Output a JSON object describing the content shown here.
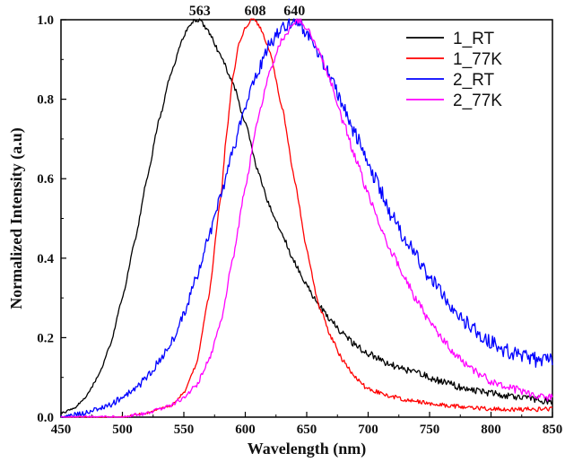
{
  "chart_data": {
    "type": "line",
    "title": "",
    "xlabel": "Wavelength (nm)",
    "ylabel": "Normalized Intensity (a.u)",
    "xlim": [
      450,
      850
    ],
    "ylim": [
      0.0,
      1.0
    ],
    "x_ticks": [
      "450",
      "500",
      "550",
      "600",
      "650",
      "700",
      "750",
      "800",
      "850"
    ],
    "y_ticks": [
      "0.0",
      "0.2",
      "0.4",
      "0.6",
      "0.8",
      "1.0"
    ],
    "grid": false,
    "legend_position": "top-right",
    "annotations": [
      {
        "text": "563",
        "x": 563,
        "y": 1.0
      },
      {
        "text": "608",
        "x": 608,
        "y": 1.0
      },
      {
        "text": "640",
        "x": 640,
        "y": 1.0
      }
    ],
    "series": [
      {
        "name": "1_RT",
        "color": "#000000",
        "x": [
          450,
          460,
          470,
          480,
          490,
          500,
          510,
          520,
          530,
          540,
          550,
          555,
          560,
          563,
          570,
          580,
          590,
          600,
          610,
          620,
          630,
          640,
          650,
          660,
          670,
          680,
          690,
          700,
          720,
          740,
          760,
          780,
          800,
          820,
          850
        ],
        "y": [
          0.01,
          0.02,
          0.05,
          0.1,
          0.18,
          0.3,
          0.44,
          0.6,
          0.75,
          0.87,
          0.96,
          0.99,
          1.0,
          1.0,
          0.97,
          0.91,
          0.84,
          0.74,
          0.62,
          0.53,
          0.46,
          0.39,
          0.33,
          0.28,
          0.24,
          0.21,
          0.18,
          0.16,
          0.13,
          0.11,
          0.09,
          0.07,
          0.06,
          0.05,
          0.04
        ]
      },
      {
        "name": "1_77K",
        "color": "#ff0000",
        "x": [
          450,
          480,
          500,
          520,
          540,
          550,
          560,
          570,
          580,
          585,
          590,
          595,
          600,
          605,
          608,
          612,
          620,
          630,
          640,
          650,
          660,
          670,
          680,
          690,
          700,
          720,
          740,
          760,
          800,
          850
        ],
        "y": [
          0.0,
          0.0,
          0.0,
          0.01,
          0.03,
          0.06,
          0.13,
          0.3,
          0.55,
          0.72,
          0.86,
          0.94,
          0.98,
          1.0,
          1.0,
          0.98,
          0.92,
          0.78,
          0.6,
          0.42,
          0.28,
          0.2,
          0.14,
          0.1,
          0.07,
          0.05,
          0.04,
          0.03,
          0.02,
          0.02
        ]
      },
      {
        "name": "2_RT",
        "color": "#0000ff",
        "x": [
          450,
          470,
          480,
          490,
          500,
          510,
          520,
          530,
          540,
          550,
          560,
          570,
          580,
          590,
          600,
          610,
          620,
          630,
          640,
          650,
          660,
          670,
          680,
          690,
          700,
          710,
          720,
          730,
          740,
          750,
          760,
          770,
          780,
          790,
          800,
          810,
          820,
          830,
          840,
          850
        ],
        "y": [
          0.0,
          0.01,
          0.02,
          0.03,
          0.05,
          0.07,
          0.1,
          0.14,
          0.19,
          0.26,
          0.35,
          0.45,
          0.56,
          0.67,
          0.78,
          0.87,
          0.94,
          0.98,
          1.0,
          0.97,
          0.91,
          0.85,
          0.78,
          0.71,
          0.64,
          0.57,
          0.5,
          0.45,
          0.4,
          0.35,
          0.31,
          0.27,
          0.24,
          0.21,
          0.19,
          0.17,
          0.16,
          0.15,
          0.14,
          0.14
        ]
      },
      {
        "name": "2_77K",
        "color": "#ff00ff",
        "x": [
          450,
          500,
          520,
          540,
          550,
          560,
          570,
          580,
          590,
          600,
          610,
          620,
          630,
          640,
          645,
          650,
          660,
          670,
          680,
          690,
          700,
          710,
          720,
          730,
          740,
          750,
          760,
          770,
          780,
          790,
          800,
          810,
          820,
          830,
          840,
          850
        ],
        "y": [
          0.0,
          0.0,
          0.01,
          0.03,
          0.05,
          0.08,
          0.14,
          0.24,
          0.4,
          0.58,
          0.75,
          0.87,
          0.95,
          0.99,
          1.0,
          0.98,
          0.92,
          0.84,
          0.74,
          0.65,
          0.56,
          0.48,
          0.41,
          0.35,
          0.29,
          0.24,
          0.2,
          0.16,
          0.13,
          0.11,
          0.09,
          0.08,
          0.07,
          0.06,
          0.05,
          0.05
        ]
      }
    ]
  }
}
